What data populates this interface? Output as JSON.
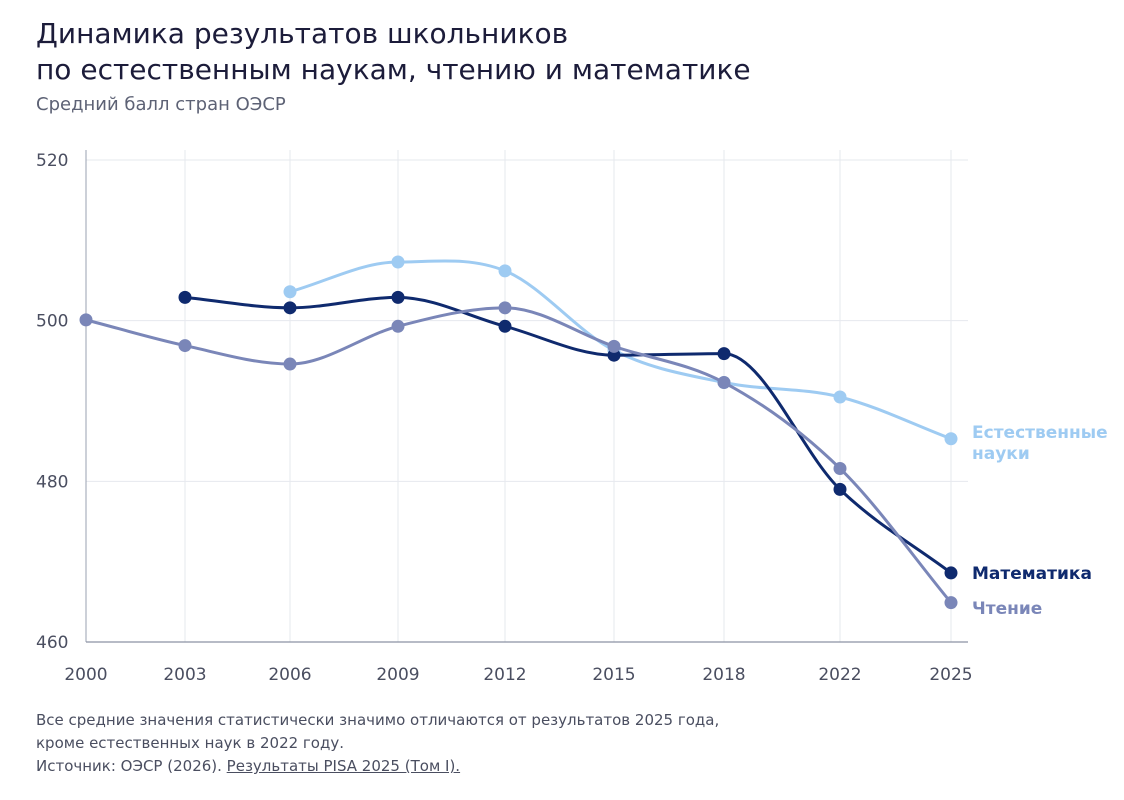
{
  "title_line1": "Динамика результатов школьников",
  "title_line2": "по естественным наукам, чтению и математике",
  "subtitle": "Средний балл стран ОЭСР",
  "notes": {
    "line1": "Все средние значения статистически значимо отличаются от результатов 2025 года,",
    "line2": "кроме естественных наук в 2022 году.",
    "source_prefix": "Источник: ОЭСР (2026). ",
    "source_link": "Результаты PISA 2025 (Том I)."
  },
  "chart_data": {
    "type": "line",
    "x": [
      "2000",
      "2003",
      "2006",
      "2009",
      "2012",
      "2015",
      "2018",
      "2022",
      "2025"
    ],
    "ylim": [
      460,
      520
    ],
    "yticks": [
      460,
      480,
      500,
      520
    ],
    "grid": true,
    "series": [
      {
        "name": "Естественные науки",
        "label_lines": [
          "Естественные",
          "науки"
        ],
        "color": "#9ecbf2",
        "values": [
          null,
          null,
          503.6,
          507.3,
          506.2,
          496.3,
          492.3,
          490.5,
          485.3
        ]
      },
      {
        "name": "Математика",
        "label_lines": [
          "Математика"
        ],
        "color": "#0f2a6e",
        "values": [
          null,
          502.9,
          501.6,
          502.9,
          499.3,
          495.7,
          495.9,
          479.0,
          468.6
        ]
      },
      {
        "name": "Чтение",
        "label_lines": [
          "Чтение"
        ],
        "color": "#7a86b8",
        "values": [
          500.1,
          496.9,
          494.6,
          499.3,
          501.6,
          496.8,
          492.3,
          481.6,
          464.9
        ]
      }
    ]
  }
}
